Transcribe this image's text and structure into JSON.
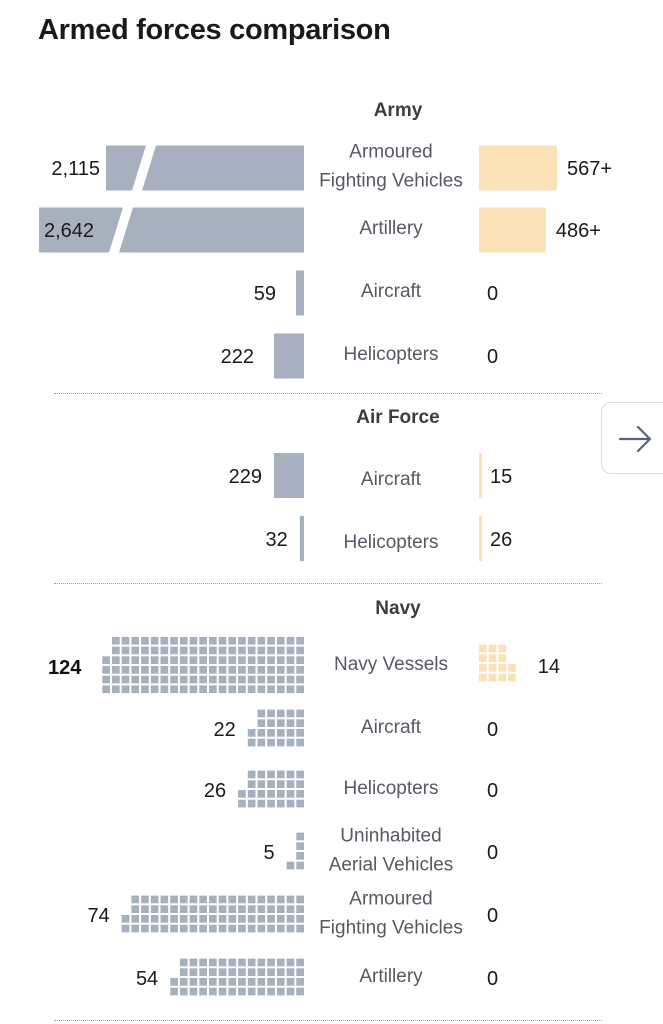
{
  "title": "Armed forces comparison",
  "colors": {
    "left": "#a7b0bf",
    "right": "#fbe2b6",
    "label": "#555a62",
    "value": "#1a1a1a"
  },
  "nav": {
    "next_icon": "arrow-right-icon"
  },
  "chart_data": [
    {
      "type": "bar",
      "title": "Army",
      "categories": [
        "Armoured Fighting Vehicles",
        "Artillery",
        "Aircraft",
        "Helicopters"
      ],
      "series": [
        {
          "values": [
            2115,
            2642,
            59,
            222
          ],
          "labels": [
            "2,115",
            "2,642",
            "59",
            "222"
          ]
        },
        {
          "values": [
            567,
            486,
            0,
            0
          ],
          "labels": [
            "567+",
            "486+",
            "0",
            "0"
          ]
        }
      ],
      "left_bars_truncated": [
        true,
        true,
        false,
        false
      ]
    },
    {
      "type": "bar",
      "title": "Air Force",
      "categories": [
        "Aircraft",
        "Helicopters"
      ],
      "series": [
        {
          "values": [
            229,
            32
          ],
          "labels": [
            "229",
            "32"
          ]
        },
        {
          "values": [
            15,
            26
          ],
          "labels": [
            "15",
            "26"
          ]
        }
      ]
    },
    {
      "type": "bar",
      "title": "Navy",
      "categories": [
        "Navy Vessels",
        "Aircraft",
        "Helicopters",
        "Uninhabited Aerial Vehicles",
        "Armoured Fighting Vehicles",
        "Artillery"
      ],
      "series": [
        {
          "values": [
            124,
            22,
            26,
            5,
            74,
            54
          ],
          "labels": [
            "124",
            "22",
            "26",
            "5",
            "74",
            "54"
          ]
        },
        {
          "values": [
            14,
            0,
            0,
            0,
            0,
            0
          ],
          "labels": [
            "14",
            "0",
            "0",
            "0",
            "0",
            "0"
          ]
        }
      ]
    }
  ]
}
